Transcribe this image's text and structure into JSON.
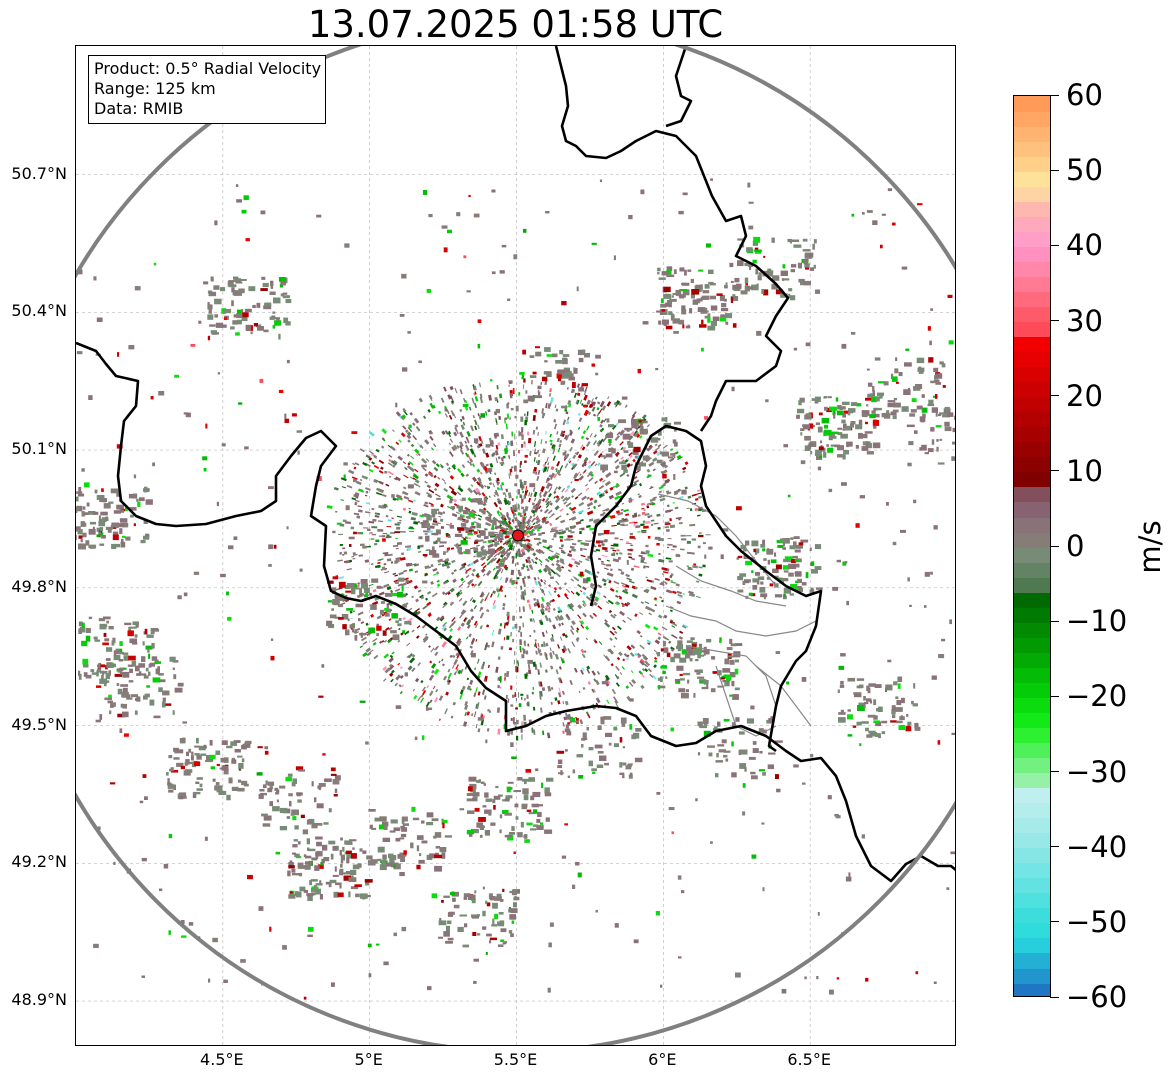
{
  "title": "13.07.2025 01:58 UTC",
  "info": {
    "product": "Product: 0.5° Radial Velocity",
    "range": "Range: 125 km",
    "data": "Data: RMIB"
  },
  "map": {
    "lon_range": [
      4.0,
      7.0
    ],
    "lat_range": [
      48.8,
      50.98
    ],
    "radar_site": {
      "lon": 5.505,
      "lat": 49.914
    },
    "range_km": 125,
    "grid": true,
    "y_ticks": [
      {
        "value": 50.7,
        "label": "50.7°N"
      },
      {
        "value": 50.4,
        "label": "50.4°N"
      },
      {
        "value": 50.1,
        "label": "50.1°N"
      },
      {
        "value": 49.8,
        "label": "49.8°N"
      },
      {
        "value": 49.5,
        "label": "49.5°N"
      },
      {
        "value": 49.2,
        "label": "49.2°N"
      },
      {
        "value": 48.9,
        "label": "48.9°N"
      }
    ],
    "x_ticks": [
      {
        "value": 4.5,
        "label": "4.5°E"
      },
      {
        "value": 5.0,
        "label": "5°E"
      },
      {
        "value": 5.5,
        "label": "5.5°E"
      },
      {
        "value": 6.0,
        "label": "6°E"
      },
      {
        "value": 6.5,
        "label": "6.5°E"
      }
    ],
    "colors": {
      "range_ring": "#808080",
      "border": "#000000",
      "admin": "#888888",
      "site_fill": "#e8141c",
      "grid": "#bbbbbb"
    }
  },
  "colorbar": {
    "label": "m/s",
    "min": -60,
    "max": 60,
    "ticks": [
      {
        "value": 60,
        "label": "60"
      },
      {
        "value": 50,
        "label": "50"
      },
      {
        "value": 40,
        "label": "40"
      },
      {
        "value": 30,
        "label": "30"
      },
      {
        "value": 20,
        "label": "20"
      },
      {
        "value": 10,
        "label": "10"
      },
      {
        "value": 0,
        "label": "0"
      },
      {
        "value": -10,
        "label": "−10"
      },
      {
        "value": -20,
        "label": "−20"
      },
      {
        "value": -30,
        "label": "−30"
      },
      {
        "value": -40,
        "label": "−40"
      },
      {
        "value": -50,
        "label": "−50"
      },
      {
        "value": -60,
        "label": "−60"
      }
    ],
    "bands": [
      {
        "from": -60,
        "to": -58,
        "color": "#1f77c4"
      },
      {
        "from": -58,
        "to": -56,
        "color": "#2196cc"
      },
      {
        "from": -56,
        "to": -54,
        "color": "#23b0d4"
      },
      {
        "from": -54,
        "to": -52,
        "color": "#27cfdc"
      },
      {
        "from": -52,
        "to": -50,
        "color": "#2fdbdb"
      },
      {
        "from": -50,
        "to": -48,
        "color": "#3ddddb"
      },
      {
        "from": -48,
        "to": -46,
        "color": "#4fe1de"
      },
      {
        "from": -46,
        "to": -44,
        "color": "#62e3e1"
      },
      {
        "from": -44,
        "to": -42,
        "color": "#74e5e5"
      },
      {
        "from": -42,
        "to": -40,
        "color": "#86e6e5"
      },
      {
        "from": -40,
        "to": -38,
        "color": "#98e8e8"
      },
      {
        "from": -38,
        "to": -36,
        "color": "#a6eaea"
      },
      {
        "from": -36,
        "to": -34,
        "color": "#b5eded"
      },
      {
        "from": -34,
        "to": -32,
        "color": "#c0efef"
      },
      {
        "from": -32,
        "to": -30,
        "color": "#96f0a8"
      },
      {
        "from": -30,
        "to": -28,
        "color": "#72f080"
      },
      {
        "from": -28,
        "to": -26,
        "color": "#4ff05a"
      },
      {
        "from": -26,
        "to": -24,
        "color": "#2cf030"
      },
      {
        "from": -24,
        "to": -22,
        "color": "#12ea18"
      },
      {
        "from": -22,
        "to": -20,
        "color": "#0adc0e"
      },
      {
        "from": -20,
        "to": -18,
        "color": "#05cc08"
      },
      {
        "from": -18,
        "to": -16,
        "color": "#04bc06"
      },
      {
        "from": -16,
        "to": -14,
        "color": "#03aa04"
      },
      {
        "from": -14,
        "to": -12,
        "color": "#029a03"
      },
      {
        "from": -12,
        "to": -10,
        "color": "#018a02"
      },
      {
        "from": -10,
        "to": -8,
        "color": "#017a01"
      },
      {
        "from": -8,
        "to": -6,
        "color": "#006a00"
      },
      {
        "from": -6,
        "to": -4,
        "color": "#4f7a51"
      },
      {
        "from": -4,
        "to": -2,
        "color": "#638364"
      },
      {
        "from": -2,
        "to": 0,
        "color": "#778b76"
      },
      {
        "from": 0,
        "to": 2,
        "color": "#867d79"
      },
      {
        "from": 2,
        "to": 4,
        "color": "#8a7279"
      },
      {
        "from": 4,
        "to": 6,
        "color": "#876270"
      },
      {
        "from": 6,
        "to": 8,
        "color": "#834f5c"
      },
      {
        "from": 8,
        "to": 10,
        "color": "#800000"
      },
      {
        "from": 10,
        "to": 12,
        "color": "#8c0000"
      },
      {
        "from": 12,
        "to": 14,
        "color": "#990000"
      },
      {
        "from": 14,
        "to": 16,
        "color": "#a60000"
      },
      {
        "from": 16,
        "to": 18,
        "color": "#b30000"
      },
      {
        "from": 18,
        "to": 20,
        "color": "#c00000"
      },
      {
        "from": 20,
        "to": 22,
        "color": "#cc0000"
      },
      {
        "from": 22,
        "to": 24,
        "color": "#d90000"
      },
      {
        "from": 24,
        "to": 26,
        "color": "#e60000"
      },
      {
        "from": 26,
        "to": 28,
        "color": "#f20000"
      },
      {
        "from": 28,
        "to": 30,
        "color": "#ff4a5a"
      },
      {
        "from": 30,
        "to": 32,
        "color": "#ff5a6a"
      },
      {
        "from": 32,
        "to": 34,
        "color": "#ff6a7c"
      },
      {
        "from": 34,
        "to": 36,
        "color": "#ff7a92"
      },
      {
        "from": 36,
        "to": 38,
        "color": "#ff88aa"
      },
      {
        "from": 38,
        "to": 40,
        "color": "#ff90c0"
      },
      {
        "from": 40,
        "to": 42,
        "color": "#ff9ec6"
      },
      {
        "from": 42,
        "to": 44,
        "color": "#ffaabc"
      },
      {
        "from": 44,
        "to": 46,
        "color": "#ffb8b0"
      },
      {
        "from": 46,
        "to": 48,
        "color": "#ffd4a4"
      },
      {
        "from": 48,
        "to": 50,
        "color": "#ffe29a"
      },
      {
        "from": 50,
        "to": 52,
        "color": "#ffd08a"
      },
      {
        "from": 52,
        "to": 54,
        "color": "#ffc27e"
      },
      {
        "from": 54,
        "to": 56,
        "color": "#ffb472"
      },
      {
        "from": 56,
        "to": 58,
        "color": "#ffa664"
      },
      {
        "from": 58,
        "to": 60,
        "color": "#ff9a58"
      }
    ]
  }
}
